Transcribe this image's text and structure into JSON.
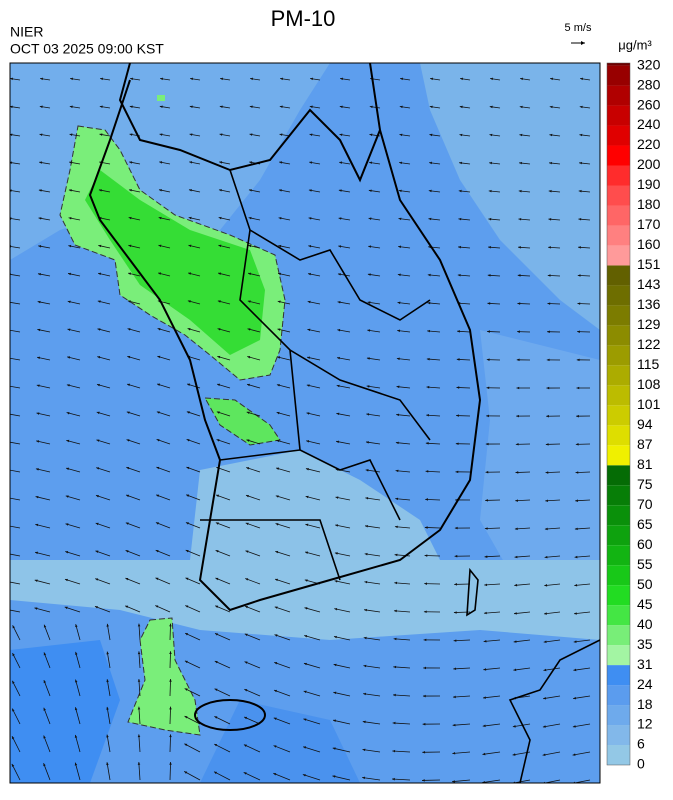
{
  "title": "PM-10",
  "agency": "NIER",
  "timestamp": "OCT 03 2025 09:00 KST",
  "wind_scale": "5 m/s",
  "unit": "μg/m³",
  "colorbar": {
    "levels": [
      0,
      6,
      12,
      18,
      24,
      31,
      35,
      40,
      45,
      50,
      55,
      60,
      65,
      70,
      75,
      81,
      87,
      94,
      101,
      108,
      115,
      122,
      129,
      136,
      143,
      151,
      160,
      170,
      180,
      190,
      200,
      220,
      240,
      260,
      280,
      320
    ],
    "colors": [
      "#93c8e6",
      "#82b8ea",
      "#6eaaec",
      "#5b9cee",
      "#3f8ef2",
      "#a3f5a3",
      "#78ee78",
      "#44e644",
      "#22dc22",
      "#18c818",
      "#12b412",
      "#0ea20e",
      "#0a900a",
      "#077e07",
      "#056c05",
      "#f0f000",
      "#dede00",
      "#cccc00",
      "#bcbc00",
      "#acac00",
      "#9c9c00",
      "#8c8c00",
      "#7c7c00",
      "#6e6e00",
      "#626000",
      "#ff9a9a",
      "#ff8080",
      "#ff6666",
      "#ff4d4d",
      "#ff2c2c",
      "#ff0000",
      "#e00000",
      "#c80000",
      "#b00000",
      "#980000",
      "#700000"
    ]
  }
}
